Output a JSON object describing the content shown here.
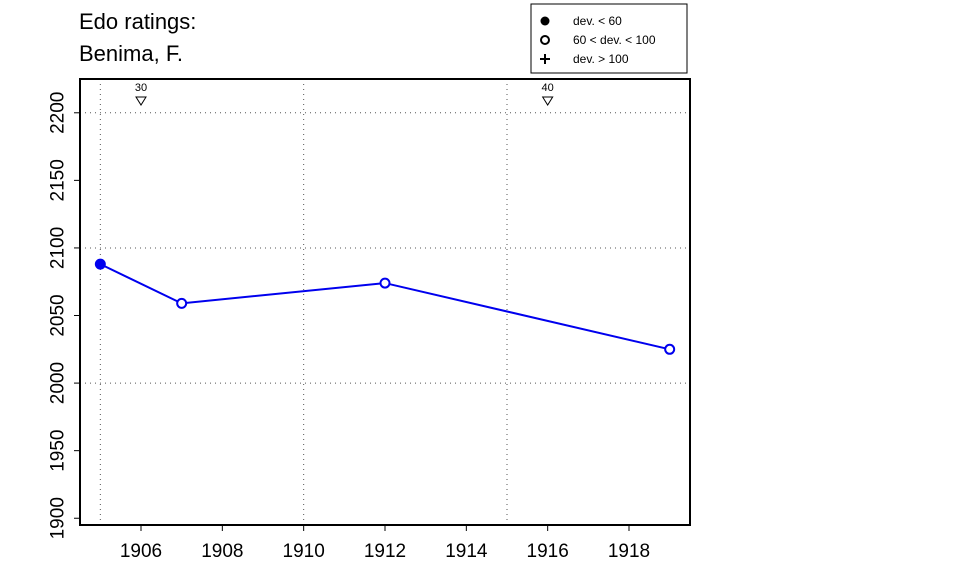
{
  "title_line1": "Edo ratings:",
  "title_line2": "Benima, F.",
  "legend": [
    {
      "symbol": "filled-circle",
      "label": "dev. < 60"
    },
    {
      "symbol": "open-circle",
      "label": "60 < dev. < 100"
    },
    {
      "symbol": "plus",
      "label": "dev. > 100"
    }
  ],
  "colors": {
    "series": "#0000ee",
    "axis": "#000000",
    "grid": "#555555"
  },
  "chart_data": {
    "type": "line",
    "title": "Edo ratings: Benima, F.",
    "xlim": [
      1904.5,
      1919.5
    ],
    "ylim": [
      1895,
      2225
    ],
    "x_ticks": [
      1906,
      1908,
      1910,
      1912,
      1914,
      1916,
      1918
    ],
    "y_ticks": [
      1900,
      1950,
      2000,
      2050,
      2100,
      2150,
      2200
    ],
    "x_gridlines": [
      1905,
      1910,
      1915
    ],
    "y_gridlines": [
      2000,
      2100,
      2200
    ],
    "grid": true,
    "legend_position": "top-right",
    "series": [
      {
        "points": [
          {
            "x": 1905,
            "y": 2088,
            "marker": "filled-circle"
          },
          {
            "x": 1907,
            "y": 2059,
            "marker": "open-circle"
          },
          {
            "x": 1912,
            "y": 2074,
            "marker": "open-circle"
          },
          {
            "x": 1919,
            "y": 2025,
            "marker": "open-circle"
          }
        ]
      }
    ],
    "markers": [
      {
        "x": 1906,
        "label": "30",
        "symbol": "down-triangle"
      },
      {
        "x": 1916,
        "label": "40",
        "symbol": "down-triangle"
      }
    ]
  }
}
